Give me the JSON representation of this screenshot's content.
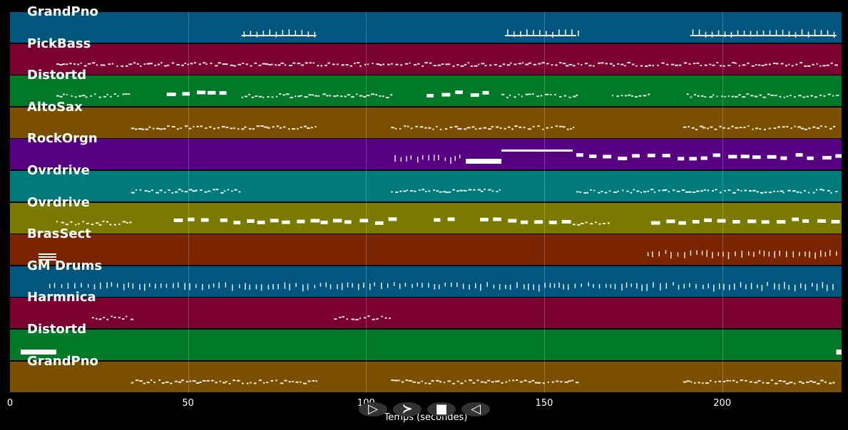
{
  "tracks": [
    {
      "name": "GrandPno",
      "color": "#00567e",
      "segments": [
        [
          65,
          86,
          "phrase"
        ],
        [
          139,
          159,
          "phrase"
        ],
        [
          191,
          232,
          "phrase"
        ]
      ]
    },
    {
      "name": "PickBass",
      "color": "#7a0030",
      "segments": [
        [
          13,
          232,
          "dots"
        ]
      ]
    },
    {
      "name": "Distortd",
      "color": "#007a28",
      "segments": [
        [
          13,
          34,
          "dots"
        ],
        [
          44,
          60,
          "blocks"
        ],
        [
          65,
          107,
          "dots"
        ],
        [
          117,
          133,
          "blocks"
        ],
        [
          138,
          159,
          "dots"
        ],
        [
          169,
          180,
          "dots"
        ],
        [
          190,
          232,
          "dots"
        ]
      ]
    },
    {
      "name": "AltoSax",
      "color": "#7a5000",
      "segments": [
        [
          34,
          86,
          "dots"
        ],
        [
          107,
          159,
          "dots"
        ],
        [
          189,
          232,
          "dots"
        ]
      ]
    },
    {
      "name": "RockOrgn",
      "color": "#560082",
      "segments": [
        [
          108,
          127,
          "ticks"
        ],
        [
          128,
          138,
          "bar"
        ],
        [
          138,
          158,
          "line"
        ],
        [
          159,
          178,
          "blocks"
        ],
        [
          179,
          232,
          "blocks"
        ]
      ]
    },
    {
      "name": "Ovrdrive",
      "color": "#007a7a",
      "segments": [
        [
          34,
          65,
          "dots"
        ],
        [
          107,
          138,
          "dots"
        ],
        [
          159,
          232,
          "dots"
        ]
      ]
    },
    {
      "name": "Ovrdrive",
      "color": "#7a7a00",
      "segments": [
        [
          13,
          34,
          "dots"
        ],
        [
          46,
          54,
          "blocks"
        ],
        [
          59,
          107,
          "blocks"
        ],
        [
          119,
          127,
          "blocks"
        ],
        [
          132,
          158,
          "blocks"
        ],
        [
          158,
          169,
          "dots"
        ],
        [
          180,
          232,
          "blocks"
        ]
      ]
    },
    {
      "name": "BrasSect",
      "color": "#7a2400",
      "segments": [
        [
          8,
          13,
          "stack"
        ],
        [
          179,
          232,
          "ticks"
        ]
      ]
    },
    {
      "name": "GM Drums",
      "color": "#00567e",
      "segments": [
        [
          11,
          232,
          "ticks"
        ]
      ]
    },
    {
      "name": "Harmnica",
      "color": "#7a0030",
      "segments": [
        [
          23,
          34,
          "dots"
        ],
        [
          91,
          107,
          "dots"
        ]
      ]
    },
    {
      "name": "Distortd",
      "color": "#007a28",
      "segments": [
        [
          3,
          13,
          "bar"
        ],
        [
          232,
          234,
          "bar"
        ]
      ]
    },
    {
      "name": "GrandPno",
      "color": "#7a5000",
      "segments": [
        [
          34,
          86,
          "dots"
        ],
        [
          107,
          159,
          "dots"
        ],
        [
          189,
          232,
          "dots"
        ]
      ]
    }
  ],
  "axis": {
    "label": "Temps (secondes)",
    "min": 0,
    "max": 233.5,
    "ticks": [
      0,
      50,
      100,
      150,
      200
    ]
  },
  "controls": [
    {
      "name": "play-button",
      "icon": "play-icon",
      "glyph": "▷"
    },
    {
      "name": "fast-forward-button",
      "icon": "fast-forward-icon",
      "glyph": "≻"
    },
    {
      "name": "stop-button",
      "icon": "stop-icon",
      "glyph": "■"
    },
    {
      "name": "rewind-button",
      "icon": "rewind-icon",
      "glyph": "◁"
    }
  ]
}
